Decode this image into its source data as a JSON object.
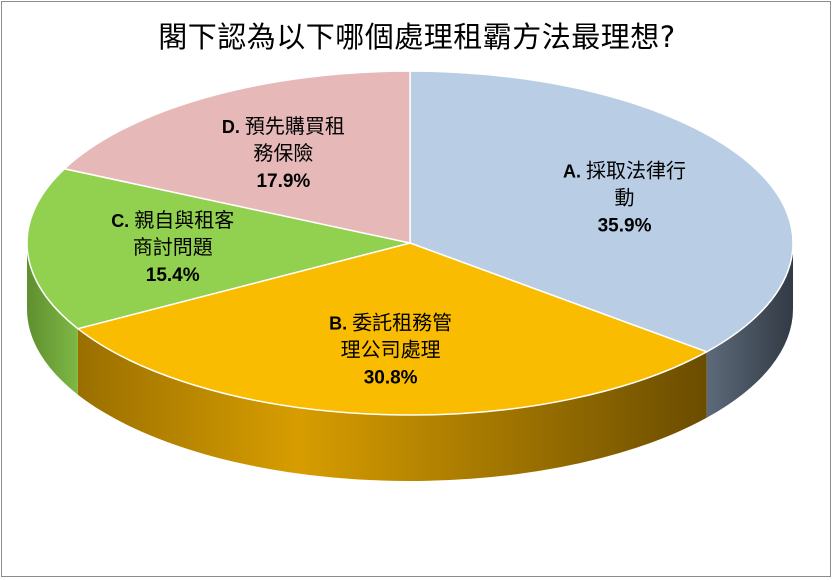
{
  "chart_data": {
    "type": "pie",
    "title": "閣下認為以下哪個處理租霸方法最理想?",
    "slices": [
      {
        "letter": "A.",
        "label_lines": [
          "採取法律行",
          "動"
        ],
        "value": 35.9,
        "pct_label": "35.9%",
        "color": "#b9cde5",
        "side": "#4f5c6b"
      },
      {
        "letter": "B.",
        "label_lines": [
          "委託租務管",
          "理公司處理"
        ],
        "value": 30.8,
        "pct_label": "30.8%",
        "color": "#f9bc00",
        "side": "#b38500"
      },
      {
        "letter": "C.",
        "label_lines": [
          "親自與租客",
          "商討問題"
        ],
        "value": 15.4,
        "pct_label": "15.4%",
        "color": "#92d050",
        "side": "#6a9a36"
      },
      {
        "letter": "D.",
        "label_lines": [
          "預先購買租",
          "務保險"
        ],
        "value": 17.9,
        "pct_label": "17.9%",
        "color": "#e6b9b8",
        "side": "#9d7473"
      }
    ],
    "legend": "none"
  }
}
